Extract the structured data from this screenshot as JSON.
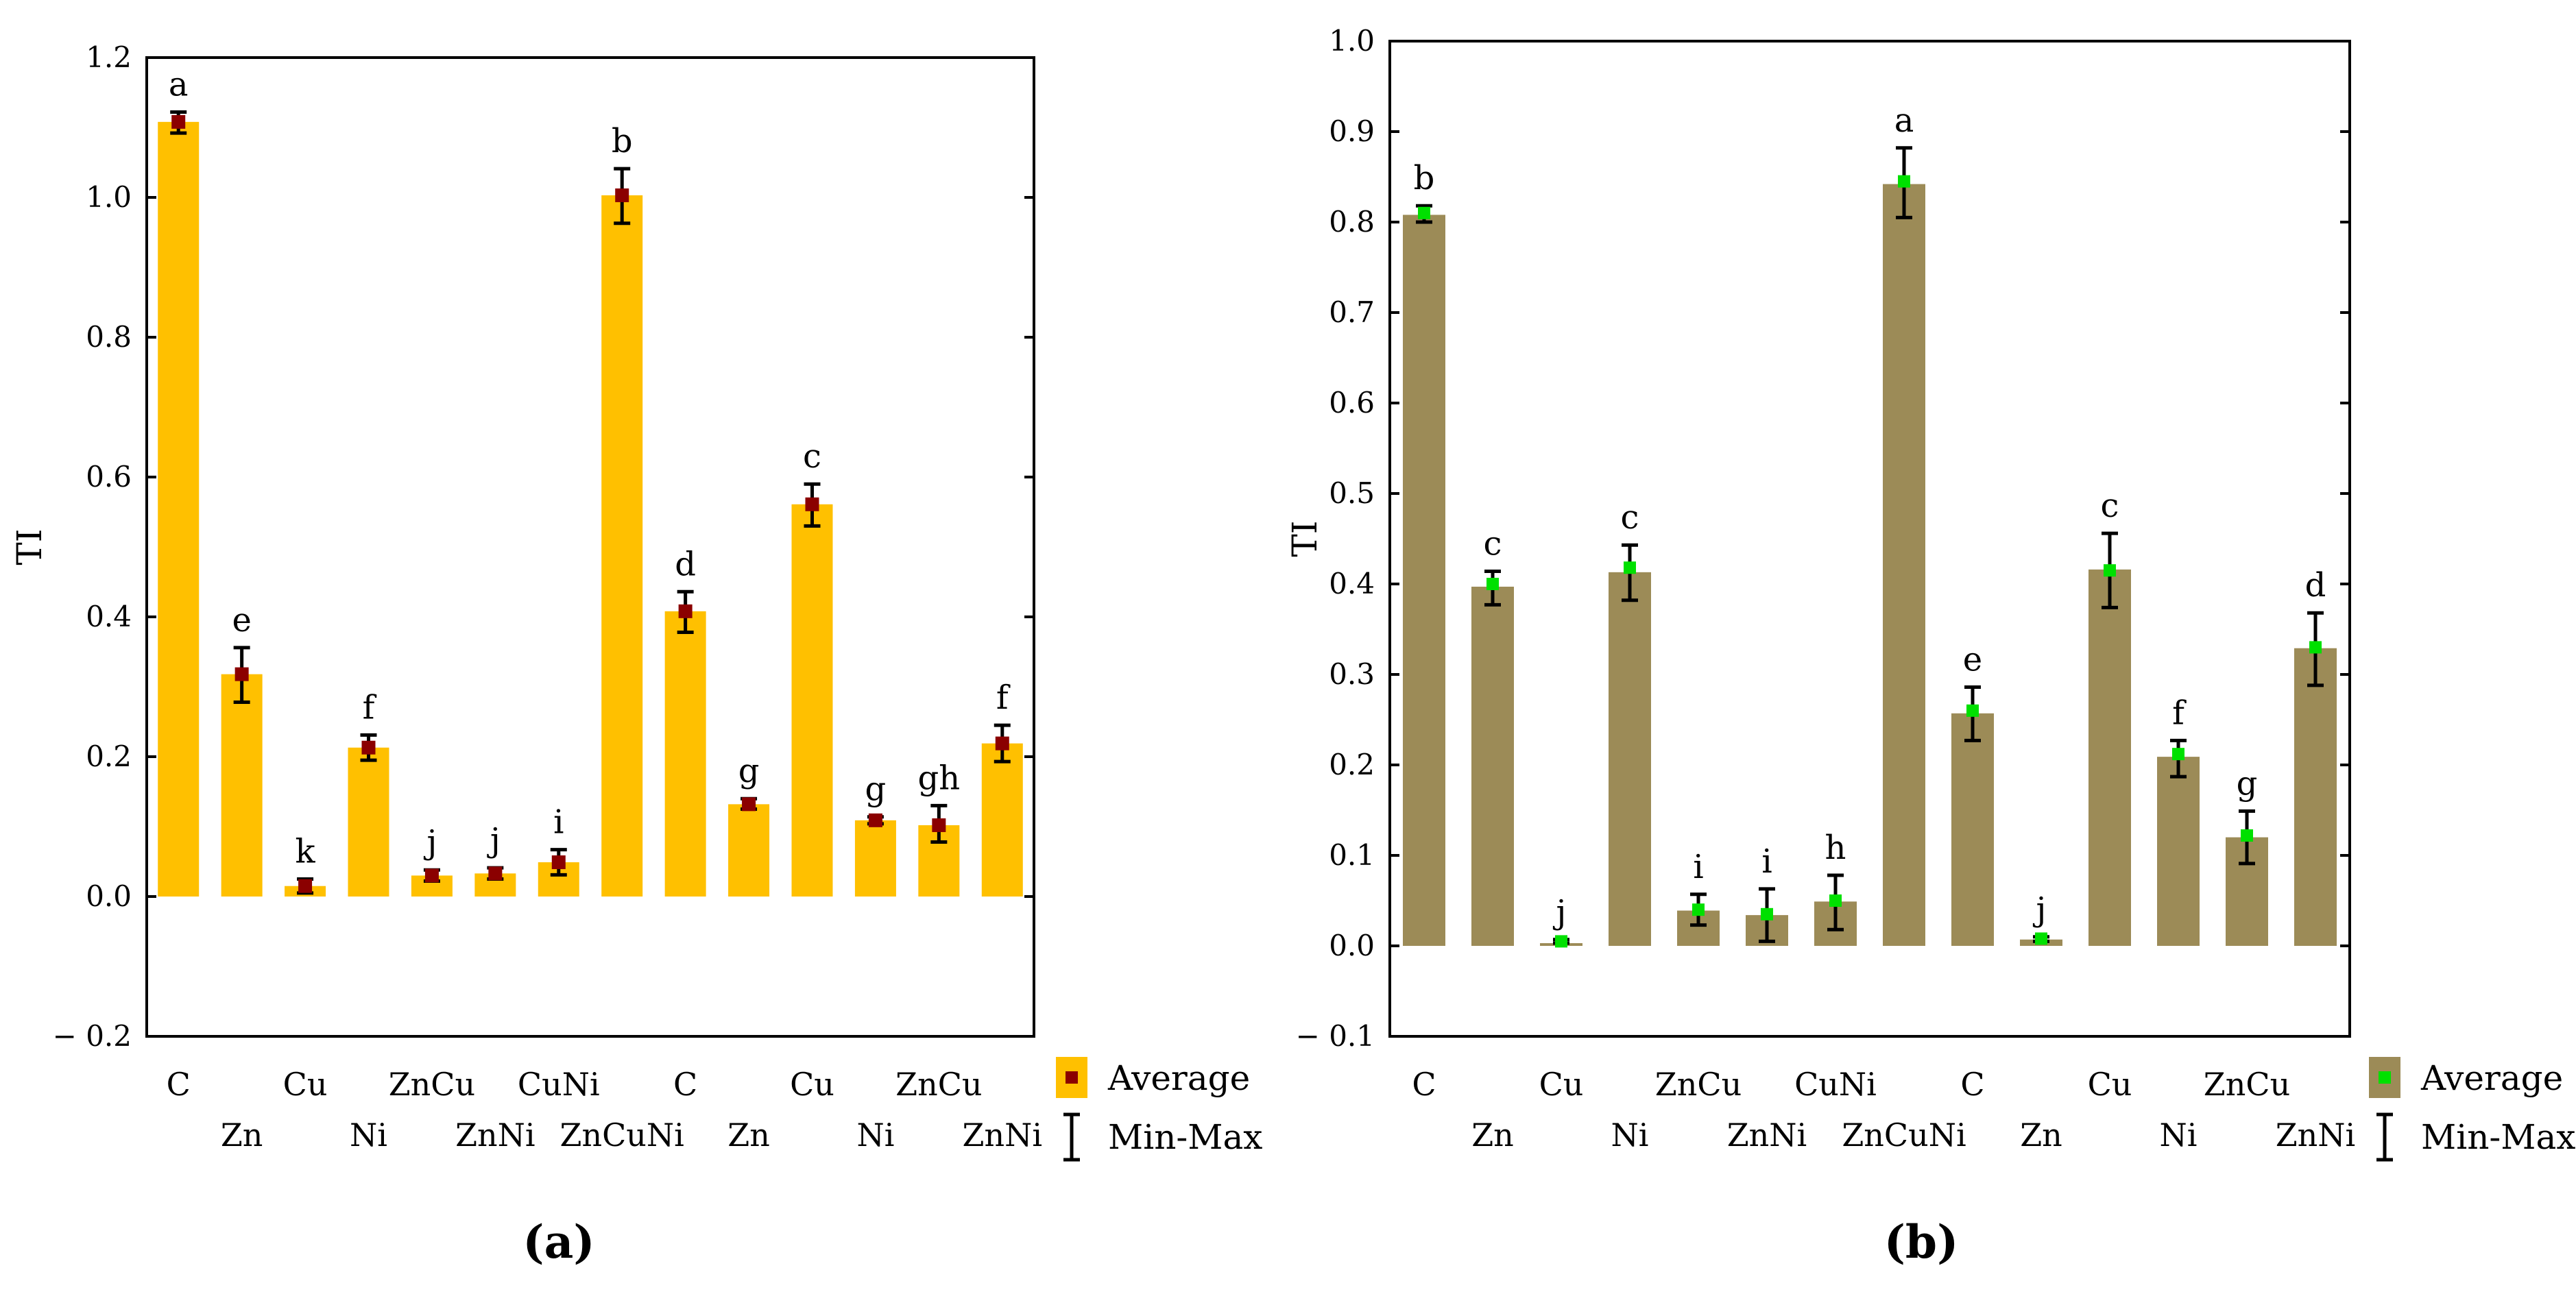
{
  "figure": {
    "panels": [
      "(a)",
      "(b)"
    ]
  },
  "chart_data": [
    {
      "type": "bar",
      "panel": "(a)",
      "title": "",
      "xlabel": "",
      "ylabel": "TI",
      "ylim": [
        -0.2,
        1.2
      ],
      "yticks": [
        "− 0.2",
        "0.0",
        "0.2",
        "0.4",
        "0.6",
        "0.8",
        "1.0",
        "1.2"
      ],
      "yticks_values": [
        -0.2,
        0.0,
        0.2,
        0.4,
        0.6,
        0.8,
        1.0,
        1.2
      ],
      "categories": [
        "C",
        "Zn",
        "Cu",
        "Ni",
        "ZnCu",
        "ZnNi",
        "CuNi",
        "ZnCuNi",
        "C",
        "Zn",
        "Cu",
        "Ni",
        "ZnCu",
        "ZnNi"
      ],
      "series": [
        {
          "name": "Average",
          "values": [
            1.108,
            0.318,
            0.015,
            0.213,
            0.03,
            0.033,
            0.049,
            1.003,
            0.408,
            0.132,
            0.561,
            0.109,
            0.102,
            0.219
          ]
        }
      ],
      "min": [
        1.092,
        0.278,
        0.005,
        0.195,
        0.022,
        0.025,
        0.031,
        0.963,
        0.378,
        0.125,
        0.53,
        0.104,
        0.078,
        0.193
      ],
      "max": [
        1.122,
        0.356,
        0.025,
        0.231,
        0.038,
        0.041,
        0.067,
        1.041,
        0.436,
        0.14,
        0.59,
        0.114,
        0.13,
        0.245
      ],
      "significance": [
        "a",
        "e",
        "k",
        "f",
        "j",
        "j",
        "i",
        "b",
        "d",
        "g",
        "c",
        "g",
        "gh",
        "f"
      ],
      "legend": {
        "average": "Average",
        "range": "Min-Max",
        "position": "right"
      },
      "colors": {
        "bar": "#FFC000",
        "marker": "#8B0000",
        "errorbar": "#000000"
      }
    },
    {
      "type": "bar",
      "panel": "(b)",
      "title": "",
      "xlabel": "",
      "ylabel": "TI",
      "ylim": [
        -0.1,
        1.0
      ],
      "yticks": [
        "− 0.1",
        "0.0",
        "0.1",
        "0.2",
        "0.3",
        "0.4",
        "0.5",
        "0.6",
        "0.7",
        "0.8",
        "0.9",
        "1.0"
      ],
      "yticks_values": [
        -0.1,
        0.0,
        0.1,
        0.2,
        0.3,
        0.4,
        0.5,
        0.6,
        0.7,
        0.8,
        0.9,
        1.0
      ],
      "categories": [
        "C",
        "Zn",
        "Cu",
        "Ni",
        "ZnCu",
        "ZnNi",
        "CuNi",
        "ZnCuNi",
        "C",
        "Zn",
        "Cu",
        "Ni",
        "ZnCu",
        "ZnNi"
      ],
      "series": [
        {
          "name": "Average",
          "values": [
            0.808,
            0.397,
            0.003,
            0.413,
            0.039,
            0.034,
            0.049,
            0.842,
            0.257,
            0.007,
            0.416,
            0.209,
            0.12,
            0.329
          ]
        },
        {
          "name": "Average marker",
          "values": [
            0.81,
            0.4,
            0.005,
            0.418,
            0.04,
            0.035,
            0.05,
            0.845,
            0.26,
            0.008,
            0.415,
            0.212,
            0.122,
            0.33
          ]
        }
      ],
      "min": [
        0.8,
        0.377,
        0.003,
        0.382,
        0.023,
        0.005,
        0.018,
        0.805,
        0.227,
        0.005,
        0.374,
        0.187,
        0.091,
        0.288
      ],
      "max": [
        0.818,
        0.414,
        0.007,
        0.443,
        0.057,
        0.063,
        0.078,
        0.882,
        0.286,
        0.01,
        0.456,
        0.227,
        0.149,
        0.368
      ],
      "significance": [
        "b",
        "c",
        "j",
        "c",
        "i",
        "i",
        "h",
        "a",
        "e",
        "j",
        "c",
        "f",
        "g",
        "d"
      ],
      "legend": {
        "average": "Average",
        "range": "Min-Max",
        "position": "right"
      },
      "colors": {
        "bar": "#9C8B57",
        "marker": "#00E000",
        "errorbar": "#000000"
      }
    }
  ]
}
